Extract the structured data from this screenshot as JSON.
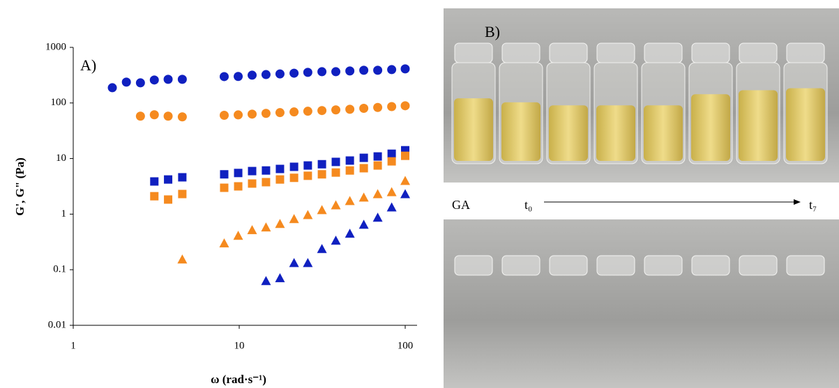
{
  "chart_data": {
    "type": "scatter",
    "panel_label": "A)",
    "x_label": "ω (rad·s⁻¹)",
    "y_label": "G', G\" (Pa)",
    "x_scale": "log",
    "y_scale": "log",
    "xlim": [
      1,
      100
    ],
    "xticks": [
      1,
      10,
      100
    ],
    "ylim": [
      0.01,
      1000
    ],
    "yticks": [
      0.01,
      0.1,
      1,
      10,
      100,
      1000
    ],
    "series": [
      {
        "color": "#1020c0",
        "marker": "circle",
        "x": [
          1.72,
          2.09,
          2.54,
          3.08,
          3.73,
          4.54,
          8.12,
          9.86,
          11.96,
          14.5,
          17.6,
          21.4,
          25.9,
          31.5,
          38.2,
          46.4,
          56.3,
          68.3,
          82.9,
          100
        ],
        "values": [
          188,
          237,
          230,
          259,
          266,
          266,
          298,
          300,
          316,
          324,
          333,
          343,
          355,
          365,
          365,
          376,
          387,
          387,
          398,
          410
        ]
      },
      {
        "color": "#f58a1f",
        "marker": "circle",
        "x": [
          2.54,
          3.08,
          3.73,
          4.54,
          8.12,
          9.86,
          11.96,
          14.5,
          17.6,
          21.4,
          25.9,
          31.5,
          38.2,
          46.4,
          56.3,
          68.3,
          82.9,
          100
        ],
        "values": [
          57.9,
          61.3,
          57.9,
          56.2,
          60,
          61,
          63,
          65,
          67,
          69,
          71,
          73,
          75,
          77,
          80,
          83,
          86,
          89
        ]
      },
      {
        "color": "#1020c0",
        "marker": "square",
        "x": [
          3.08,
          3.73,
          4.54,
          8.12,
          9.86,
          11.96,
          14.5,
          17.6,
          21.4,
          25.9,
          31.5,
          38.2,
          46.4,
          56.3,
          68.3,
          82.9,
          100
        ],
        "values": [
          3.87,
          4.2,
          4.6,
          5.2,
          5.5,
          5.95,
          6.1,
          6.5,
          7.1,
          7.5,
          7.9,
          8.7,
          9.2,
          10.3,
          10.9,
          12.2,
          14.1
        ]
      },
      {
        "color": "#f58a1f",
        "marker": "square",
        "x": [
          3.08,
          3.73,
          4.54,
          8.12,
          9.86,
          11.96,
          14.5,
          17.6,
          21.4,
          25.9,
          31.5,
          38.2,
          46.4,
          56.3,
          68.3,
          82.9,
          100
        ],
        "values": [
          2.1,
          1.83,
          2.3,
          2.98,
          3.16,
          3.55,
          3.76,
          4.2,
          4.5,
          4.9,
          5.2,
          5.6,
          6.1,
          6.7,
          7.5,
          8.9,
          11.2
        ]
      },
      {
        "color": "#f58a1f",
        "marker": "triangle",
        "x": [
          4.54,
          8.12,
          9.86,
          11.96,
          14.5,
          17.6,
          21.4,
          25.9,
          31.5,
          38.2,
          46.4,
          56.3,
          68.3,
          82.9,
          100
        ],
        "values": [
          0.154,
          0.3,
          0.41,
          0.52,
          0.58,
          0.67,
          0.82,
          0.97,
          1.19,
          1.45,
          1.73,
          2.0,
          2.3,
          2.5,
          3.98
        ]
      },
      {
        "color": "#1020c0",
        "marker": "triangle",
        "x": [
          14.5,
          17.6,
          21.4,
          25.9,
          31.5,
          38.2,
          46.4,
          56.3,
          68.3,
          82.9,
          100
        ],
        "values": [
          0.063,
          0.071,
          0.133,
          0.133,
          0.237,
          0.335,
          0.447,
          0.65,
          0.87,
          1.33,
          2.3
        ]
      }
    ]
  },
  "panel_b": {
    "label": "B)",
    "sample": "GA",
    "start": "t₀",
    "end": "t₇"
  }
}
